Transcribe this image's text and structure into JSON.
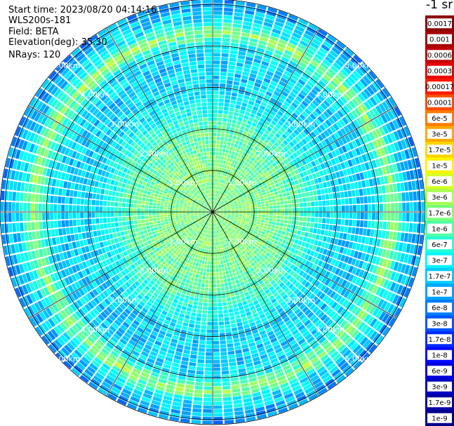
{
  "header": {
    "start_time": "Start time: 2023/08/20 04:14:16",
    "device": "WLS200s-181",
    "field": "Field: BETA",
    "elevation": "Elevation(deg): 35.30",
    "nrays": "NRays: 120"
  },
  "chart_data": {
    "type": "heatmap",
    "subtype": "polar-ppi",
    "n_rays": 120,
    "range_unit": "km",
    "rmax_km": 5.12,
    "range_rings_km": [
      1,
      2,
      3,
      4,
      5
    ],
    "ring_labels": [
      "1.00km",
      "2.00km",
      "3.00km",
      "4.00km",
      "5.00km"
    ],
    "spokes_deg": [
      0,
      30,
      60,
      90,
      120,
      150,
      180,
      210,
      240,
      270,
      300,
      330
    ],
    "profile": [
      {
        "r": 0.0,
        "level": 0.5
      },
      {
        "r": 1.0,
        "level": 0.5
      },
      {
        "r": 2.0,
        "level": 0.46
      },
      {
        "r": 2.4,
        "level": 0.4
      },
      {
        "r": 3.0,
        "level": 0.34
      },
      {
        "r": 3.6,
        "level": 0.32
      },
      {
        "r": 4.0,
        "level": 0.36
      },
      {
        "r": 4.35,
        "level": 0.52
      },
      {
        "r": 4.6,
        "level": 0.36
      },
      {
        "r": 5.1,
        "level": 0.27
      }
    ],
    "colorbar": {
      "title": "-1 sr",
      "labels": [
        "0.0017",
        "0.001",
        "0.0006",
        "0.0003",
        "0.00017",
        "0.0001",
        "6e-5",
        "3e-5",
        "1.7e-5",
        "1e-5",
        "6e-6",
        "3e-6",
        "1.7e-6",
        "1e-6",
        "6e-7",
        "3e-7",
        "1.7e-7",
        "1e-7",
        "6e-8",
        "3e-8",
        "1.7e-8",
        "1e-8",
        "6e-9",
        "3e-9",
        "1.7e-9",
        "1e-9"
      ],
      "colors": [
        "#8b0000",
        "#a40000",
        "#c40000",
        "#ea0000",
        "#ff1800",
        "#ff4a00",
        "#ff7a00",
        "#ffa800",
        "#ffd400",
        "#fff400",
        "#d8ff24",
        "#a8ff50",
        "#7cff7c",
        "#50ffa8",
        "#24ffd8",
        "#00f4ff",
        "#00ccff",
        "#00a4ff",
        "#007cff",
        "#0054ff",
        "#002cff",
        "#0008ff",
        "#0000e0",
        "#0000c4",
        "#0000a4",
        "#000088"
      ]
    }
  }
}
